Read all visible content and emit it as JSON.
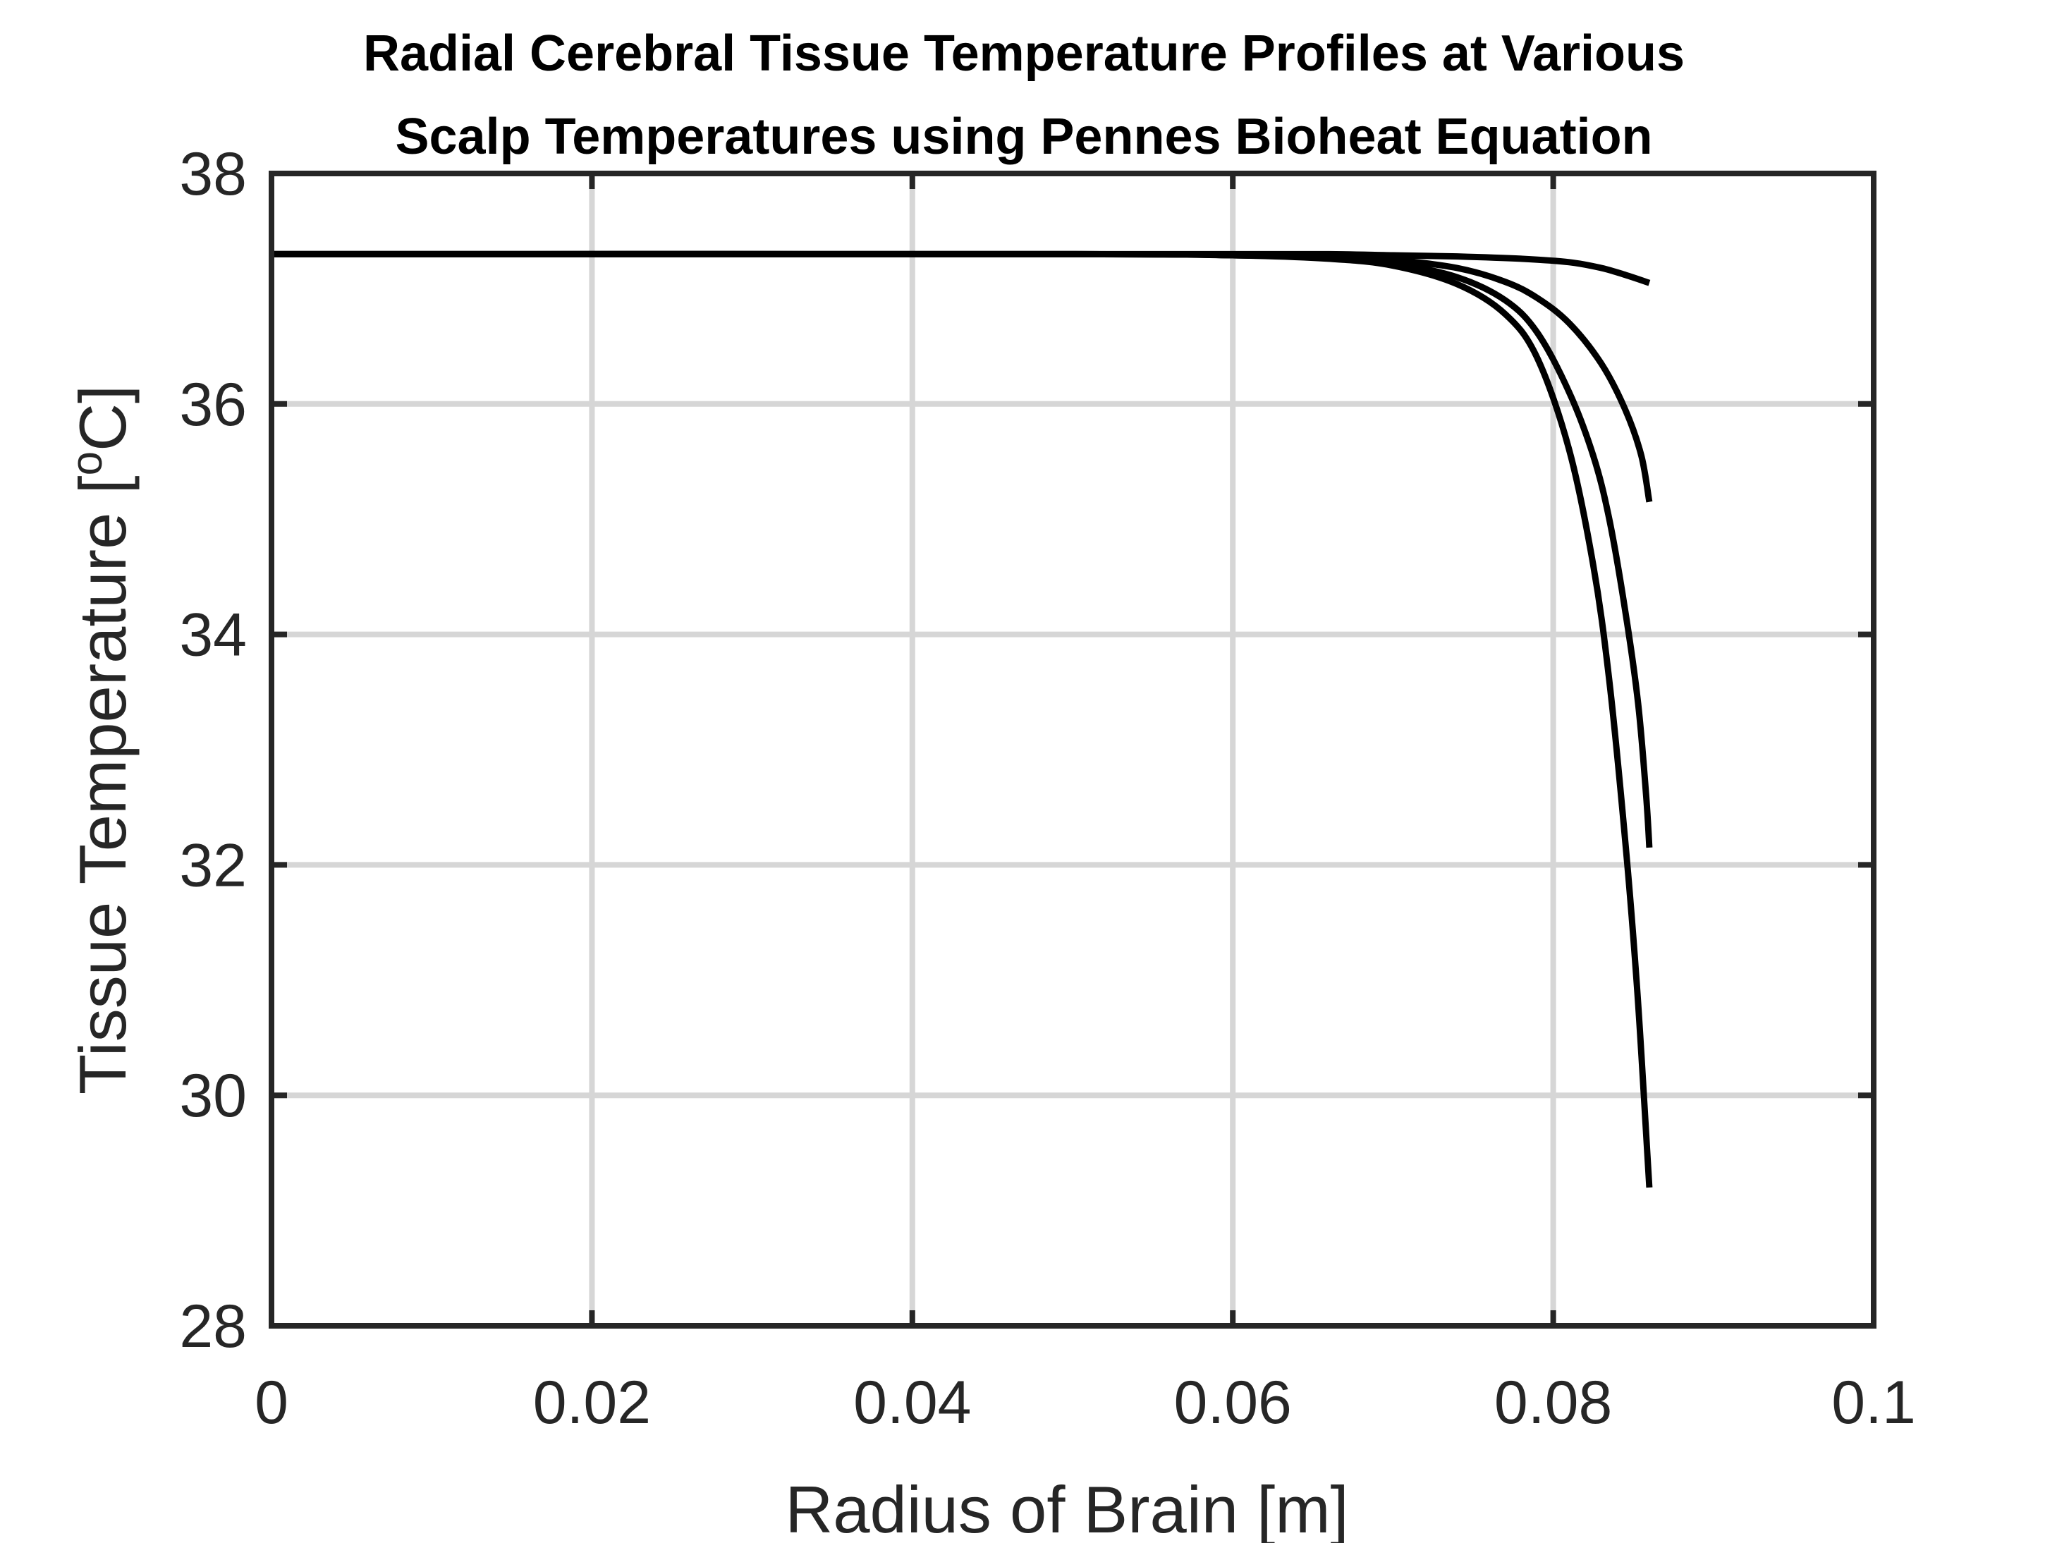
{
  "chart_data": {
    "type": "line",
    "title": [
      "Radial Cerebral Tissue Temperature Profiles at Various",
      "Scalp Temperatures using Pennes Bioheat Equation"
    ],
    "xlabel": "Radius of Brain [m]",
    "ylabel_main": "Tissue Temperature [",
    "ylabel_sup": "o",
    "ylabel_end": "C]",
    "xlim": [
      0,
      0.1
    ],
    "ylim": [
      28,
      38
    ],
    "xticks": [
      0,
      0.02,
      0.04,
      0.06,
      0.08,
      0.1
    ],
    "xtick_labels": [
      "0",
      "0.02",
      "0.04",
      "0.06",
      "0.08",
      "0.1"
    ],
    "yticks": [
      28,
      30,
      32,
      34,
      36,
      38
    ],
    "ytick_labels": [
      "28",
      "30",
      "32",
      "34",
      "36",
      "38"
    ],
    "grid": true,
    "colors": {
      "series": "#000000",
      "grid": "#d6d6d6",
      "axes": "#262626"
    },
    "series": [
      {
        "x": [
          0,
          0.05,
          0.06,
          0.066,
          0.07,
          0.074,
          0.077,
          0.079,
          0.081,
          0.0825,
          0.0835,
          0.0845,
          0.0852,
          0.0857,
          0.086
        ],
        "y": [
          37.3,
          37.3,
          37.29,
          37.26,
          37.2,
          37.04,
          36.78,
          36.4,
          35.6,
          34.6,
          33.6,
          32.2,
          31.0,
          29.9,
          29.2
        ]
      },
      {
        "x": [
          0,
          0.05,
          0.06,
          0.066,
          0.07,
          0.074,
          0.077,
          0.079,
          0.081,
          0.0825,
          0.0835,
          0.0845,
          0.0853,
          0.0858,
          0.086
        ],
        "y": [
          37.3,
          37.3,
          37.29,
          37.27,
          37.22,
          37.1,
          36.9,
          36.62,
          36.1,
          35.55,
          35.0,
          34.2,
          33.4,
          32.6,
          32.15
        ]
      },
      {
        "x": [
          0,
          0.05,
          0.06,
          0.066,
          0.07,
          0.074,
          0.077,
          0.079,
          0.081,
          0.083,
          0.0845,
          0.0855,
          0.086
        ],
        "y": [
          37.3,
          37.3,
          37.29,
          37.28,
          37.25,
          37.18,
          37.06,
          36.92,
          36.7,
          36.35,
          35.95,
          35.55,
          35.15
        ]
      },
      {
        "x": [
          0,
          0.05,
          0.06,
          0.066,
          0.07,
          0.074,
          0.078,
          0.081,
          0.083,
          0.0845,
          0.086
        ],
        "y": [
          37.3,
          37.3,
          37.3,
          37.3,
          37.29,
          37.28,
          37.26,
          37.23,
          37.18,
          37.12,
          37.05
        ]
      }
    ]
  }
}
